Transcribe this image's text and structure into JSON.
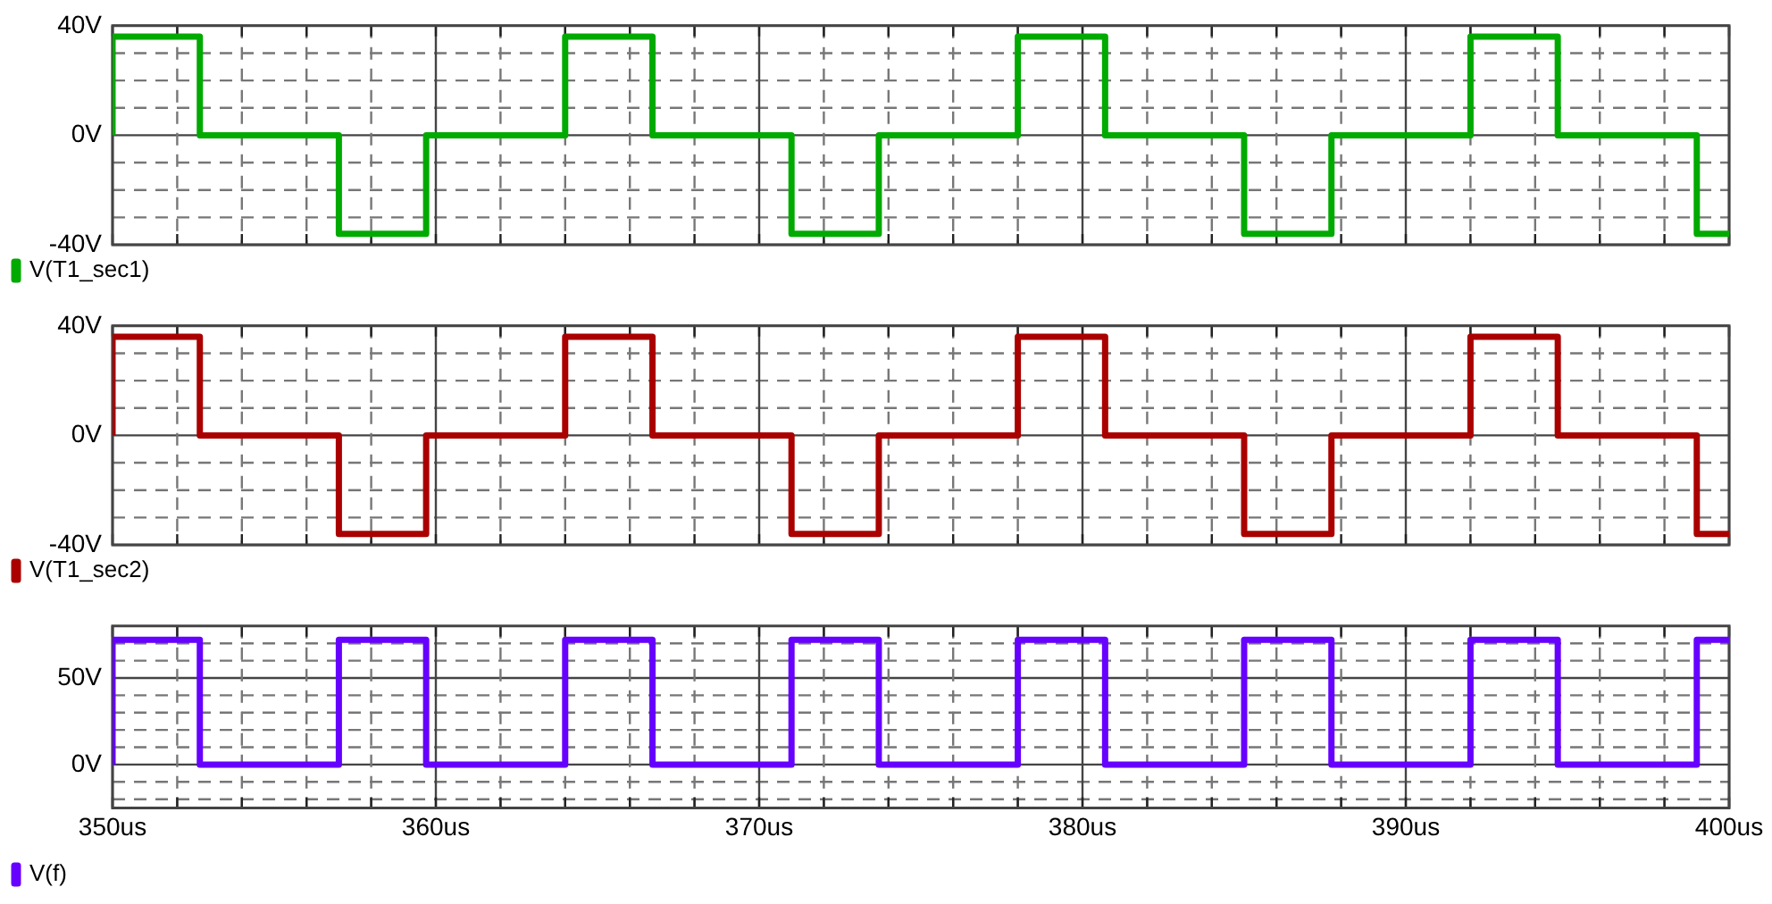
{
  "chart_data": [
    {
      "type": "step",
      "xlim": [
        350,
        400
      ],
      "ylim": [
        -40,
        40
      ],
      "grid": true,
      "legend": "bottom",
      "tick_labels": "y",
      "xticks": [
        350,
        {
          "value": 352,
          "label": null
        },
        {
          "value": 354,
          "label": null
        },
        {
          "value": 356,
          "label": null
        },
        {
          "value": 358,
          "label": null
        },
        360,
        {
          "value": 362,
          "label": null
        },
        {
          "value": 364,
          "label": null
        },
        {
          "value": 366,
          "label": null
        },
        {
          "value": 368,
          "label": null
        },
        370,
        {
          "value": 372,
          "label": null
        },
        {
          "value": 374,
          "label": null
        },
        {
          "value": 376,
          "label": null
        },
        {
          "value": 378,
          "label": null
        },
        380,
        {
          "value": 382,
          "label": null
        },
        {
          "value": 384,
          "label": null
        },
        {
          "value": 386,
          "label": null
        },
        {
          "value": 388,
          "label": null
        },
        390,
        {
          "value": 392,
          "label": null
        },
        {
          "value": 394,
          "label": null
        },
        {
          "value": 396,
          "label": null
        },
        {
          "value": 398,
          "label": null
        },
        400
      ],
      "yticks": [
        {
          "value": -40,
          "label": "-40V"
        },
        {
          "value": -30,
          "label": null
        },
        {
          "value": -20,
          "label": null
        },
        {
          "value": -10,
          "label": null
        },
        {
          "value": 0,
          "label": "0V"
        },
        {
          "value": 10,
          "label": null
        },
        {
          "value": 20,
          "label": null
        },
        {
          "value": 30,
          "label": null
        },
        {
          "value": 40,
          "label": "40V"
        }
      ],
      "series": [
        {
          "name": "V(T1_sec1)",
          "color": "#00aa00",
          "x": [
            350,
            350,
            352.7,
            357,
            359.7,
            364,
            366.7,
            371,
            373.7,
            378,
            380.7,
            385,
            387.7,
            392,
            394.7,
            399,
            400
          ],
          "values": [
            0,
            36,
            0,
            -36,
            0,
            36,
            0,
            -36,
            0,
            36,
            0,
            -36,
            0,
            36,
            0,
            -36,
            -36
          ]
        }
      ]
    },
    {
      "type": "step",
      "xlim": [
        350,
        400
      ],
      "ylim": [
        -40,
        40
      ],
      "grid": true,
      "legend": "bottom",
      "tick_labels": "y",
      "xticks": [
        350,
        {
          "value": 352,
          "label": null
        },
        {
          "value": 354,
          "label": null
        },
        {
          "value": 356,
          "label": null
        },
        {
          "value": 358,
          "label": null
        },
        360,
        {
          "value": 362,
          "label": null
        },
        {
          "value": 364,
          "label": null
        },
        {
          "value": 366,
          "label": null
        },
        {
          "value": 368,
          "label": null
        },
        370,
        {
          "value": 372,
          "label": null
        },
        {
          "value": 374,
          "label": null
        },
        {
          "value": 376,
          "label": null
        },
        {
          "value": 378,
          "label": null
        },
        380,
        {
          "value": 382,
          "label": null
        },
        {
          "value": 384,
          "label": null
        },
        {
          "value": 386,
          "label": null
        },
        {
          "value": 388,
          "label": null
        },
        390,
        {
          "value": 392,
          "label": null
        },
        {
          "value": 394,
          "label": null
        },
        {
          "value": 396,
          "label": null
        },
        {
          "value": 398,
          "label": null
        },
        400
      ],
      "yticks": [
        {
          "value": -40,
          "label": "-40V"
        },
        {
          "value": -30,
          "label": null
        },
        {
          "value": -20,
          "label": null
        },
        {
          "value": -10,
          "label": null
        },
        {
          "value": 0,
          "label": "0V"
        },
        {
          "value": 10,
          "label": null
        },
        {
          "value": 20,
          "label": null
        },
        {
          "value": 30,
          "label": null
        },
        {
          "value": 40,
          "label": "40V"
        }
      ],
      "series": [
        {
          "name": "V(T1_sec2)",
          "color": "#aa0000",
          "x": [
            350,
            350,
            352.7,
            357,
            359.7,
            364,
            366.7,
            371,
            373.7,
            378,
            380.7,
            385,
            387.7,
            392,
            394.7,
            399,
            400
          ],
          "values": [
            0,
            36,
            0,
            -36,
            0,
            36,
            0,
            -36,
            0,
            36,
            0,
            -36,
            0,
            36,
            0,
            -36,
            -36
          ]
        }
      ]
    },
    {
      "type": "step",
      "xlim": [
        350,
        400
      ],
      "ylim": [
        -25,
        80
      ],
      "grid": true,
      "legend": "bottom",
      "xticks": [
        {
          "value": 350,
          "label": "350us"
        },
        {
          "value": 352,
          "label": null
        },
        {
          "value": 354,
          "label": null
        },
        {
          "value": 356,
          "label": null
        },
        {
          "value": 358,
          "label": null
        },
        {
          "value": 360,
          "label": "360us"
        },
        {
          "value": 362,
          "label": null
        },
        {
          "value": 364,
          "label": null
        },
        {
          "value": 366,
          "label": null
        },
        {
          "value": 368,
          "label": null
        },
        {
          "value": 370,
          "label": "370us"
        },
        {
          "value": 372,
          "label": null
        },
        {
          "value": 374,
          "label": null
        },
        {
          "value": 376,
          "label": null
        },
        {
          "value": 378,
          "label": null
        },
        {
          "value": 380,
          "label": "380us"
        },
        {
          "value": 382,
          "label": null
        },
        {
          "value": 384,
          "label": null
        },
        {
          "value": 386,
          "label": null
        },
        {
          "value": 388,
          "label": null
        },
        {
          "value": 390,
          "label": "390us"
        },
        {
          "value": 392,
          "label": null
        },
        {
          "value": 394,
          "label": null
        },
        {
          "value": 396,
          "label": null
        },
        {
          "value": 398,
          "label": null
        },
        {
          "value": 400,
          "label": "400us"
        }
      ],
      "yticks": [
        {
          "value": -20,
          "label": null
        },
        {
          "value": -10,
          "label": null
        },
        {
          "value": 0,
          "label": "0V"
        },
        {
          "value": 10,
          "label": null
        },
        {
          "value": 20,
          "label": null
        },
        {
          "value": 30,
          "label": null
        },
        {
          "value": 40,
          "label": null
        },
        {
          "value": 50,
          "label": "50V"
        },
        {
          "value": 60,
          "label": null
        },
        {
          "value": 70,
          "label": null
        }
      ],
      "series": [
        {
          "name": "V(f)",
          "color": "#6600ff",
          "x": [
            350,
            350,
            352.7,
            357,
            359.7,
            364,
            366.7,
            371,
            373.7,
            378,
            380.7,
            385,
            387.7,
            392,
            394.7,
            399,
            400
          ],
          "values": [
            0,
            72,
            0,
            72,
            0,
            72,
            0,
            72,
            0,
            72,
            0,
            72,
            0,
            72,
            0,
            72,
            72
          ]
        }
      ]
    }
  ]
}
